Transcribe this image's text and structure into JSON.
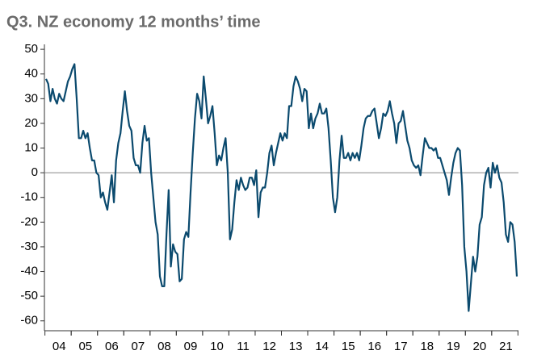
{
  "chart_data": {
    "type": "line",
    "title": "Q3. NZ economy 12 months’ time",
    "categories": [
      null,
      null,
      null,
      null,
      null,
      null,
      "04",
      null,
      null,
      null,
      null,
      null,
      null,
      null,
      null,
      null,
      null,
      null,
      "05",
      null,
      null,
      null,
      null,
      null,
      null,
      null,
      null,
      null,
      null,
      null,
      "06",
      null,
      null,
      null,
      null,
      null,
      null,
      null,
      null,
      null,
      null,
      null,
      "07",
      null,
      null,
      null,
      null,
      null,
      null,
      null,
      null,
      null,
      null,
      null,
      "08",
      null,
      null,
      null,
      null,
      null,
      null,
      null,
      null,
      null,
      null,
      null,
      "09",
      null,
      null,
      null,
      null,
      null,
      null,
      null,
      null,
      null,
      null,
      null,
      "10",
      null,
      null,
      null,
      null,
      null,
      null,
      null,
      null,
      null,
      null,
      null,
      "11",
      null,
      null,
      null,
      null,
      null,
      null,
      null,
      null,
      null,
      null,
      null,
      "12",
      null,
      null,
      null,
      null,
      null,
      null,
      null,
      null,
      null,
      null,
      null,
      "13",
      null,
      null,
      null,
      null,
      null,
      null,
      null,
      null,
      null,
      null,
      null,
      "14",
      null,
      null,
      null,
      null,
      null,
      null,
      null,
      null,
      null,
      null,
      null,
      "15",
      null,
      null,
      null,
      null,
      null,
      null,
      null,
      null,
      null,
      null,
      null,
      "16",
      null,
      null,
      null,
      null,
      null,
      null,
      null,
      null,
      null,
      null,
      null,
      "17",
      null,
      null,
      null,
      null,
      null,
      null,
      null,
      null,
      null,
      null,
      null,
      "18",
      null,
      null,
      null,
      null,
      null,
      null,
      null,
      null,
      null,
      null,
      null,
      "19",
      null,
      null,
      null,
      null,
      null,
      null,
      null,
      null,
      null,
      null,
      null,
      "20",
      null,
      null,
      null,
      null,
      null,
      null,
      null,
      null,
      null,
      null,
      null,
      "21",
      null,
      null,
      null,
      null,
      null
    ],
    "values": [
      38,
      36,
      29,
      34,
      30,
      28,
      32,
      30,
      29,
      33,
      37,
      39,
      42,
      44,
      30,
      14,
      14,
      17,
      14,
      16,
      10,
      5,
      5,
      0,
      -1,
      -10,
      -8,
      -12,
      -15,
      -8,
      -1,
      -12,
      5,
      12,
      16,
      25,
      33,
      25,
      19,
      17,
      6,
      3,
      3,
      0,
      12,
      19,
      13,
      14,
      0,
      -10,
      -20,
      -25,
      -42,
      -46,
      -46,
      -25,
      -7,
      -38,
      -29,
      -32,
      -33,
      -44,
      -43,
      -27,
      -24,
      -26,
      -8,
      8,
      22,
      32,
      29,
      22,
      39,
      30,
      20,
      23,
      27,
      16,
      3,
      7,
      5,
      10,
      14,
      0,
      -27,
      -23,
      -12,
      -3,
      -7,
      -2,
      -5,
      -7,
      -6,
      -2,
      -2,
      -5,
      1,
      -18,
      -8,
      -6,
      -6,
      0,
      8,
      11,
      3,
      8,
      12,
      16,
      13,
      16,
      14,
      27,
      27,
      35,
      39,
      37,
      34,
      29,
      34,
      33,
      18,
      24,
      18,
      22,
      24,
      28,
      24,
      24,
      26,
      18,
      5,
      -10,
      -16,
      -10,
      5,
      15,
      6,
      6,
      8,
      5,
      8,
      6,
      8,
      5,
      11,
      18,
      22,
      23,
      23,
      25,
      26,
      20,
      14,
      18,
      24,
      23,
      25,
      29,
      24,
      20,
      12,
      20,
      21,
      25,
      19,
      13,
      10,
      5,
      3,
      2,
      3,
      -1,
      7,
      14,
      12,
      10,
      10,
      9,
      10,
      6,
      6,
      3,
      0,
      -3,
      -9,
      -2,
      4,
      8,
      10,
      9,
      -5,
      -30,
      -40,
      -56,
      -45,
      -34,
      -40,
      -34,
      -21,
      -18,
      -5,
      0,
      2,
      -6,
      4,
      0,
      3,
      -2,
      -4,
      -12,
      -25,
      -28,
      -20,
      -21,
      -28,
      -42
    ],
    "color": "#0b4a6e",
    "ylim": [
      -64,
      52
    ],
    "yticks": [
      50,
      40,
      30,
      20,
      10,
      0,
      -10,
      -20,
      -30,
      -40,
      -50,
      -60
    ]
  }
}
